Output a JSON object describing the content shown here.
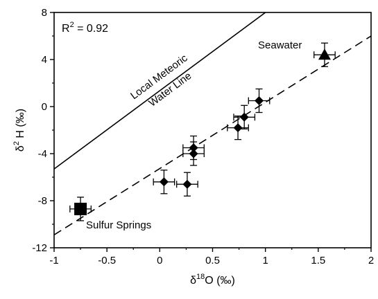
{
  "chart_data": {
    "type": "scatter",
    "xlabel": "δ18O (‰)",
    "xlabel_parts": {
      "symbol": "δ",
      "sup": "18",
      "rest": "O (‰)"
    },
    "ylabel": "δ2 H (‰)",
    "ylabel_parts": {
      "symbol": "δ",
      "sup": "2",
      "rest": " H (‰)"
    },
    "xlim": [
      -1,
      2
    ],
    "ylim": [
      -12,
      8
    ],
    "xticks": [
      -1,
      -0.5,
      0,
      0.5,
      1,
      1.5,
      2
    ],
    "xtick_labels": [
      "-1",
      "-0.5",
      "0",
      "0.5",
      "1",
      "1.5",
      "2"
    ],
    "yticks": [
      -12,
      -8,
      -4,
      0,
      4,
      8
    ],
    "ytick_labels": [
      "-12",
      "-8",
      "-4",
      "0",
      "4",
      "8"
    ],
    "grid": false,
    "r_squared": {
      "label": "R",
      "sup": "2",
      "value": " = 0.92"
    },
    "points": [
      {
        "x": 0.04,
        "y": -6.4,
        "xerr": 0.1,
        "yerr": 1.0
      },
      {
        "x": 0.26,
        "y": -6.6,
        "xerr": 0.1,
        "yerr": 1.0
      },
      {
        "x": 0.32,
        "y": -3.5,
        "xerr": 0.1,
        "yerr": 1.0
      },
      {
        "x": 0.32,
        "y": -4.0,
        "xerr": 0.1,
        "yerr": 1.0
      },
      {
        "x": 0.74,
        "y": -1.8,
        "xerr": 0.1,
        "yerr": 1.0
      },
      {
        "x": 0.8,
        "y": -0.9,
        "xerr": 0.1,
        "yerr": 1.0
      },
      {
        "x": 0.94,
        "y": 0.5,
        "xerr": 0.1,
        "yerr": 1.0
      }
    ],
    "seawater": {
      "label": "Seawater",
      "x": 1.56,
      "y": 4.4,
      "xerr": 0.1,
      "yerr": 1.0,
      "marker": "triangle"
    },
    "sulfur_springs": {
      "label": "Sulfur Springs",
      "x": -0.75,
      "y": -8.7,
      "xerr": 0.1,
      "yerr": 1.0,
      "marker": "square"
    },
    "regression_line": {
      "style": "dashed",
      "x1": -1,
      "y1": -10.9,
      "x2": 2,
      "y2": 6.0
    },
    "lmwl": {
      "style": "solid",
      "label_line1": "Local Meteoric",
      "label_line2": "Water Line",
      "x1": -1,
      "y1": -5.3,
      "x2": 1.0,
      "y2": 8.0
    }
  }
}
